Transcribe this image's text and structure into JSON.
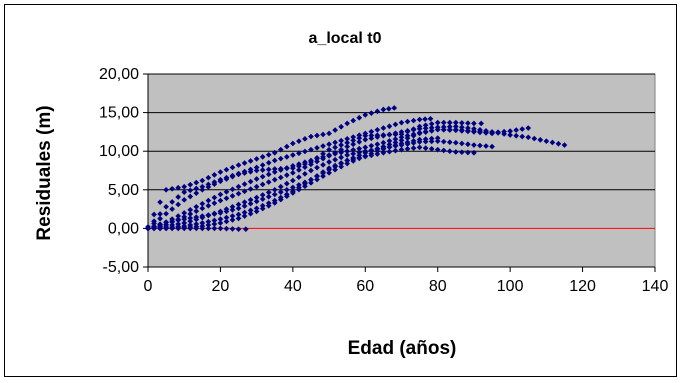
{
  "chart_data": {
    "type": "scatter",
    "title": "a_local t0",
    "xlabel": "Edad (años)",
    "ylabel": "Residuales (m)",
    "xlim": [
      0,
      140
    ],
    "ylim": [
      -5,
      20
    ],
    "xticks": [
      0,
      20,
      40,
      60,
      80,
      100,
      120,
      140
    ],
    "yticks": [
      "-5,00",
      "0,00",
      "5,00",
      "10,00",
      "15,00",
      "20,00"
    ],
    "ytick_values": [
      -5,
      0,
      5,
      10,
      15,
      20
    ],
    "grid": "horizontal",
    "legend": "none",
    "colors": {
      "plot_bg": "#c0c0c0",
      "marker": "#000080",
      "zero_line": "#ff0000",
      "gridline": "#000000"
    },
    "series": [
      {
        "x": [
          0,
          5,
          10,
          15,
          20,
          25,
          30,
          35,
          40,
          45,
          50,
          55,
          60,
          65,
          68
        ],
        "y": [
          0.2,
          5.0,
          5.4,
          6.2,
          7.3,
          8.2,
          9.0,
          9.8,
          11.0,
          11.9,
          12.3,
          13.6,
          14.7,
          15.4,
          15.6
        ]
      },
      {
        "x": [
          0,
          5,
          10,
          15,
          20,
          25,
          30,
          35,
          40,
          45,
          50,
          55,
          60,
          65,
          70,
          75,
          78
        ],
        "y": [
          0.0,
          2.8,
          4.7,
          5.4,
          6.3,
          7.1,
          7.9,
          8.8,
          9.5,
          10.2,
          10.9,
          11.6,
          12.3,
          13.0,
          13.7,
          14.1,
          14.2
        ]
      },
      {
        "x": [
          0,
          5,
          10,
          15,
          20,
          25,
          30,
          35,
          40,
          45,
          50,
          55,
          60,
          65,
          70,
          75,
          80,
          85,
          90,
          95,
          100,
          105
        ],
        "y": [
          0.0,
          0.8,
          2.0,
          3.2,
          4.4,
          5.4,
          6.4,
          7.3,
          8.1,
          8.8,
          9.5,
          10.0,
          10.5,
          11.1,
          11.8,
          12.4,
          12.8,
          12.8,
          12.6,
          12.4,
          12.6,
          13.0
        ]
      },
      {
        "x": [
          0,
          5,
          10,
          15,
          20,
          25,
          30,
          35,
          40,
          45,
          50,
          55,
          60,
          65,
          70,
          75,
          80,
          85,
          90,
          95,
          100,
          105,
          110,
          115
        ],
        "y": [
          0.0,
          0.5,
          1.5,
          2.6,
          3.6,
          4.5,
          5.4,
          6.3,
          7.2,
          8.3,
          9.4,
          10.6,
          11.5,
          12.0,
          12.5,
          12.9,
          13.1,
          13.2,
          12.9,
          12.5,
          12.1,
          11.8,
          11.3,
          10.8
        ]
      },
      {
        "x": [
          0,
          5,
          10,
          15,
          20,
          25,
          30,
          35,
          40,
          45,
          50,
          55,
          60,
          65,
          70,
          75,
          80,
          85,
          90,
          95
        ],
        "y": [
          0.0,
          0.3,
          0.7,
          1.4,
          2.2,
          3.1,
          4.0,
          5.0,
          6.2,
          7.5,
          8.6,
          9.5,
          10.0,
          10.4,
          10.8,
          11.2,
          11.3,
          11.1,
          10.8,
          10.6
        ]
      },
      {
        "x": [
          0,
          5,
          10,
          15,
          20,
          25,
          30,
          35,
          40,
          45,
          50,
          55,
          60,
          65,
          70,
          75,
          80,
          85,
          90
        ],
        "y": [
          0.0,
          0.1,
          0.3,
          0.7,
          1.2,
          1.8,
          2.6,
          3.6,
          4.8,
          6.3,
          7.8,
          8.8,
          9.3,
          9.8,
          10.2,
          10.5,
          10.2,
          9.9,
          9.8
        ]
      },
      {
        "x": [
          0,
          5,
          10,
          15,
          20,
          25,
          30,
          35,
          40,
          45,
          50,
          55,
          60,
          65,
          70,
          75,
          80
        ],
        "y": [
          0.0,
          0.0,
          0.1,
          0.3,
          0.7,
          1.3,
          2.2,
          3.3,
          4.6,
          5.9,
          7.2,
          8.4,
          9.4,
          10.3,
          11.0,
          11.5,
          11.7
        ]
      },
      {
        "x": [
          0,
          5,
          10,
          15,
          20,
          25,
          27
        ],
        "y": [
          0.0,
          0.0,
          0.0,
          0.0,
          0.0,
          -0.1,
          -0.1
        ]
      },
      {
        "x": [
          0,
          5,
          10,
          15,
          20,
          25,
          30,
          35,
          40,
          45,
          50,
          55,
          60,
          65,
          70,
          75,
          80,
          85,
          90,
          95
        ],
        "y": [
          0.0,
          0.8,
          1.2,
          1.6,
          2.0,
          2.6,
          3.5,
          4.4,
          5.3,
          6.3,
          7.6,
          8.8,
          9.8,
          10.6,
          11.4,
          12.3,
          12.8,
          12.7,
          12.5,
          12.3
        ]
      },
      {
        "x": [
          0,
          5,
          10,
          15,
          20,
          25,
          30,
          35,
          40,
          45,
          50,
          55,
          60,
          65,
          70,
          75,
          80,
          85,
          90,
          92
        ],
        "y": [
          0.0,
          1.9,
          3.7,
          5.0,
          6.1,
          7.0,
          7.5,
          7.7,
          7.8,
          8.6,
          10.2,
          11.1,
          12.0,
          12.1,
          12.2,
          13.2,
          13.7,
          13.7,
          13.6,
          13.6
        ]
      }
    ]
  }
}
